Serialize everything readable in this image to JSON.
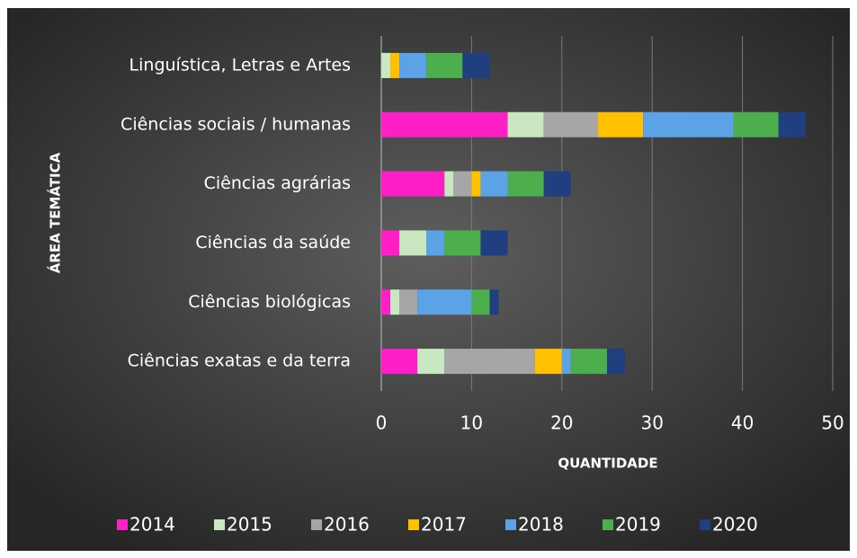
{
  "chart_data": {
    "type": "stacked-bar-horizontal",
    "categories": [
      "Linguística, Letras e Artes",
      "Ciências sociais / humanas",
      "Ciências agrárias",
      "Ciências da saúde",
      "Ciências biológicas",
      "Ciências exatas e da terra"
    ],
    "series": [
      {
        "name": "2014",
        "color": "#ff1fc6",
        "values": [
          0,
          14,
          7,
          2,
          1,
          4
        ]
      },
      {
        "name": "2015",
        "color": "#c9e7c1",
        "values": [
          1,
          4,
          1,
          3,
          1,
          3
        ]
      },
      {
        "name": "2016",
        "color": "#a6a6a6",
        "values": [
          0,
          6,
          2,
          0,
          2,
          10
        ]
      },
      {
        "name": "2017",
        "color": "#ffc000",
        "values": [
          1,
          5,
          1,
          0,
          0,
          3
        ]
      },
      {
        "name": "2018",
        "color": "#5ba3e6",
        "values": [
          3,
          10,
          3,
          2,
          6,
          1
        ]
      },
      {
        "name": "2019",
        "color": "#4cae4c",
        "values": [
          4,
          5,
          4,
          4,
          2,
          4
        ]
      },
      {
        "name": "2020",
        "color": "#1f3f80",
        "values": [
          3,
          3,
          3,
          3,
          1,
          2
        ]
      }
    ],
    "xlabel": "QUANTIDADE",
    "ylabel": "ÁREA TEMÁTICA",
    "xlim": [
      0,
      50
    ],
    "xticks": [
      0,
      10,
      20,
      30,
      40,
      50
    ],
    "grid": true,
    "legend": "bottom"
  }
}
